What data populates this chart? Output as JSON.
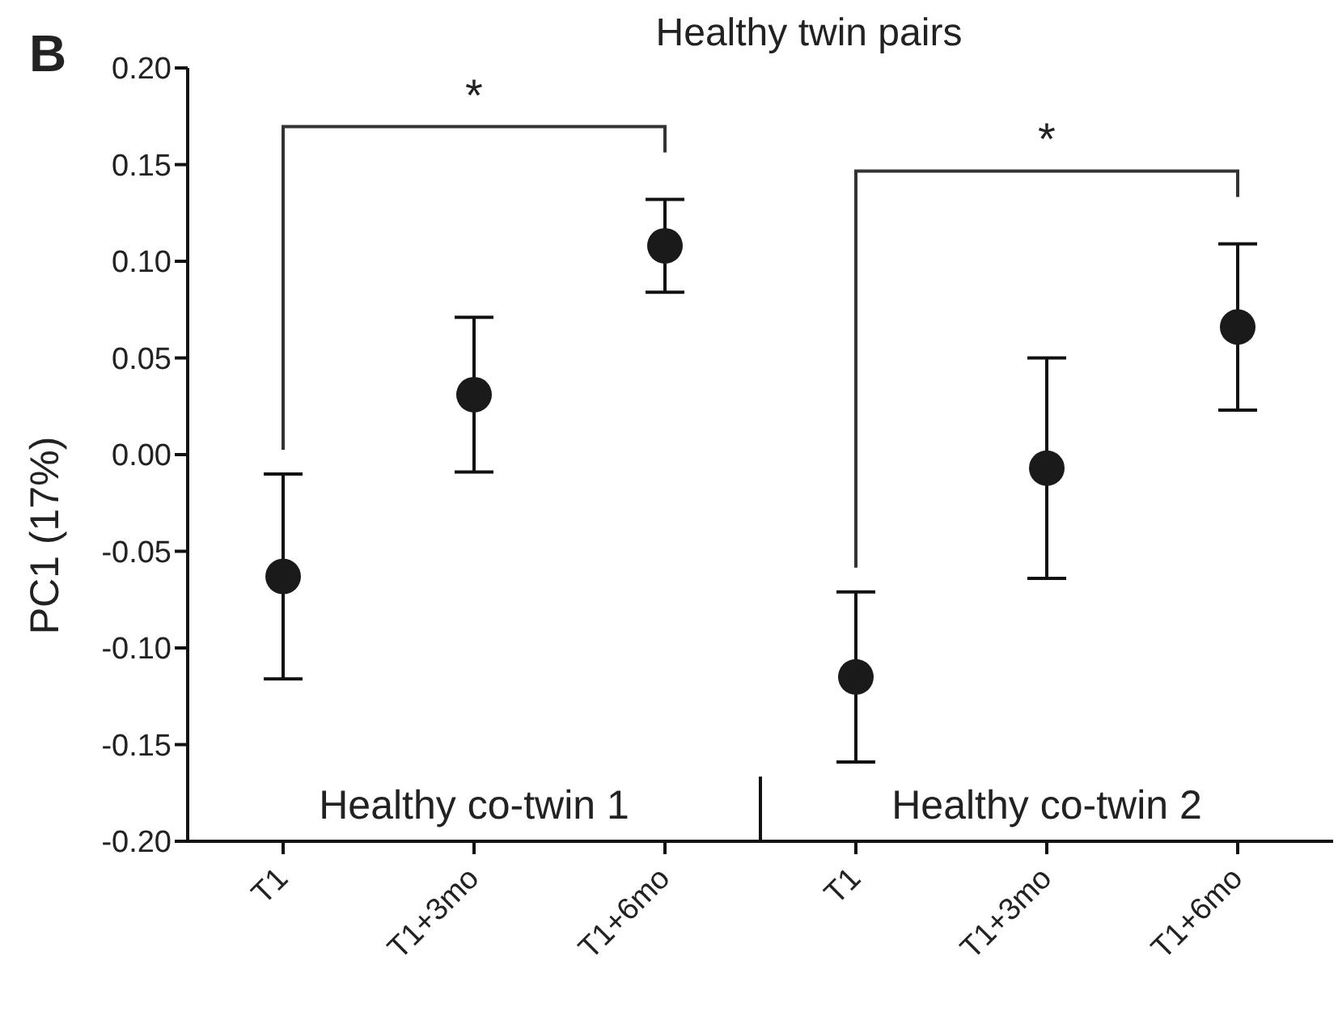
{
  "chart_data": {
    "type": "scatter",
    "title": "Healthy twin pairs",
    "ylabel": "PC1 (17%)",
    "categories": [
      "T1",
      "T1+3mo",
      "T1+6mo",
      "T1",
      "T1+3mo",
      "T1+6mo"
    ],
    "series": [
      {
        "color": "#1a1a1a",
        "values": [
          -0.063,
          0.031,
          0.108,
          -0.115,
          -0.007,
          0.066
        ],
        "errors": [
          0.053,
          0.04,
          0.024,
          0.044,
          0.057,
          0.043
        ]
      }
    ],
    "ylim": [
      -0.2,
      0.2
    ],
    "yticks": [
      {
        "value": -0.2,
        "label": "-0.20"
      },
      {
        "value": -0.15,
        "label": "-0.15"
      },
      {
        "value": -0.1,
        "label": "-0.10"
      },
      {
        "value": -0.05,
        "label": "-0.05"
      },
      {
        "value": 0,
        "label": "0.00"
      },
      {
        "value": 0.05,
        "label": "0.05"
      },
      {
        "value": 0.1,
        "label": "0.10"
      },
      {
        "value": 0.15,
        "label": "0.15"
      },
      {
        "value": 0.2,
        "label": "0.20"
      }
    ],
    "marker": "circle",
    "annotations": [
      "B",
      "*",
      "*",
      "Healthy co-twin 1",
      "Healthy co-twin 2"
    ]
  }
}
